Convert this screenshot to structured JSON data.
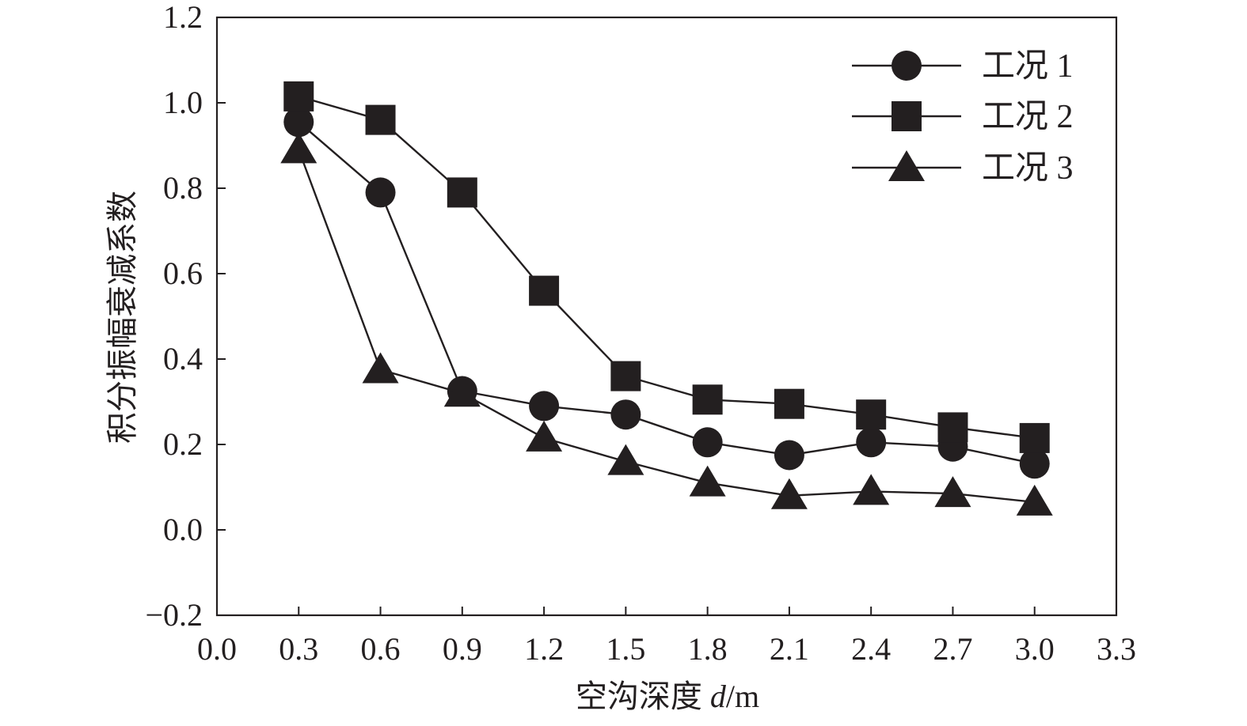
{
  "chart_data": {
    "type": "line",
    "title": "",
    "xlabel": "空沟深度 d/m",
    "xlabel_parts": {
      "cn": "空沟深度 ",
      "var": "d",
      "unit": "/m"
    },
    "ylabel": "积分振幅衰减系数",
    "xlim": [
      0.0,
      3.3
    ],
    "ylim": [
      -0.2,
      1.2
    ],
    "x_ticks": [
      "0.0",
      "0.3",
      "0.6",
      "0.9",
      "1.2",
      "1.5",
      "1.8",
      "2.1",
      "2.4",
      "2.7",
      "3.0",
      "3.3"
    ],
    "y_ticks": [
      "−0.2",
      "0.0",
      "0.2",
      "0.4",
      "0.6",
      "0.8",
      "1.0",
      "1.2"
    ],
    "grid": false,
    "legend_position": "top-right",
    "x": [
      0.3,
      0.6,
      0.9,
      1.2,
      1.5,
      1.8,
      2.1,
      2.4,
      2.7,
      3.0
    ],
    "series": [
      {
        "name": "工况 1",
        "marker": "circle",
        "values": [
          0.955,
          0.79,
          0.325,
          0.29,
          0.27,
          0.205,
          0.175,
          0.205,
          0.195,
          0.155
        ]
      },
      {
        "name": "工况 2",
        "marker": "square",
        "values": [
          1.015,
          0.96,
          0.79,
          0.56,
          0.36,
          0.305,
          0.295,
          0.27,
          0.24,
          0.215
        ]
      },
      {
        "name": "工况 3",
        "marker": "triangle",
        "values": [
          0.89,
          0.375,
          0.32,
          0.215,
          0.16,
          0.11,
          0.08,
          0.09,
          0.085,
          0.065
        ]
      }
    ],
    "colors": {
      "line": "#231f20",
      "marker": "#231f20",
      "axis": "#231f20",
      "background": "#ffffff"
    }
  }
}
